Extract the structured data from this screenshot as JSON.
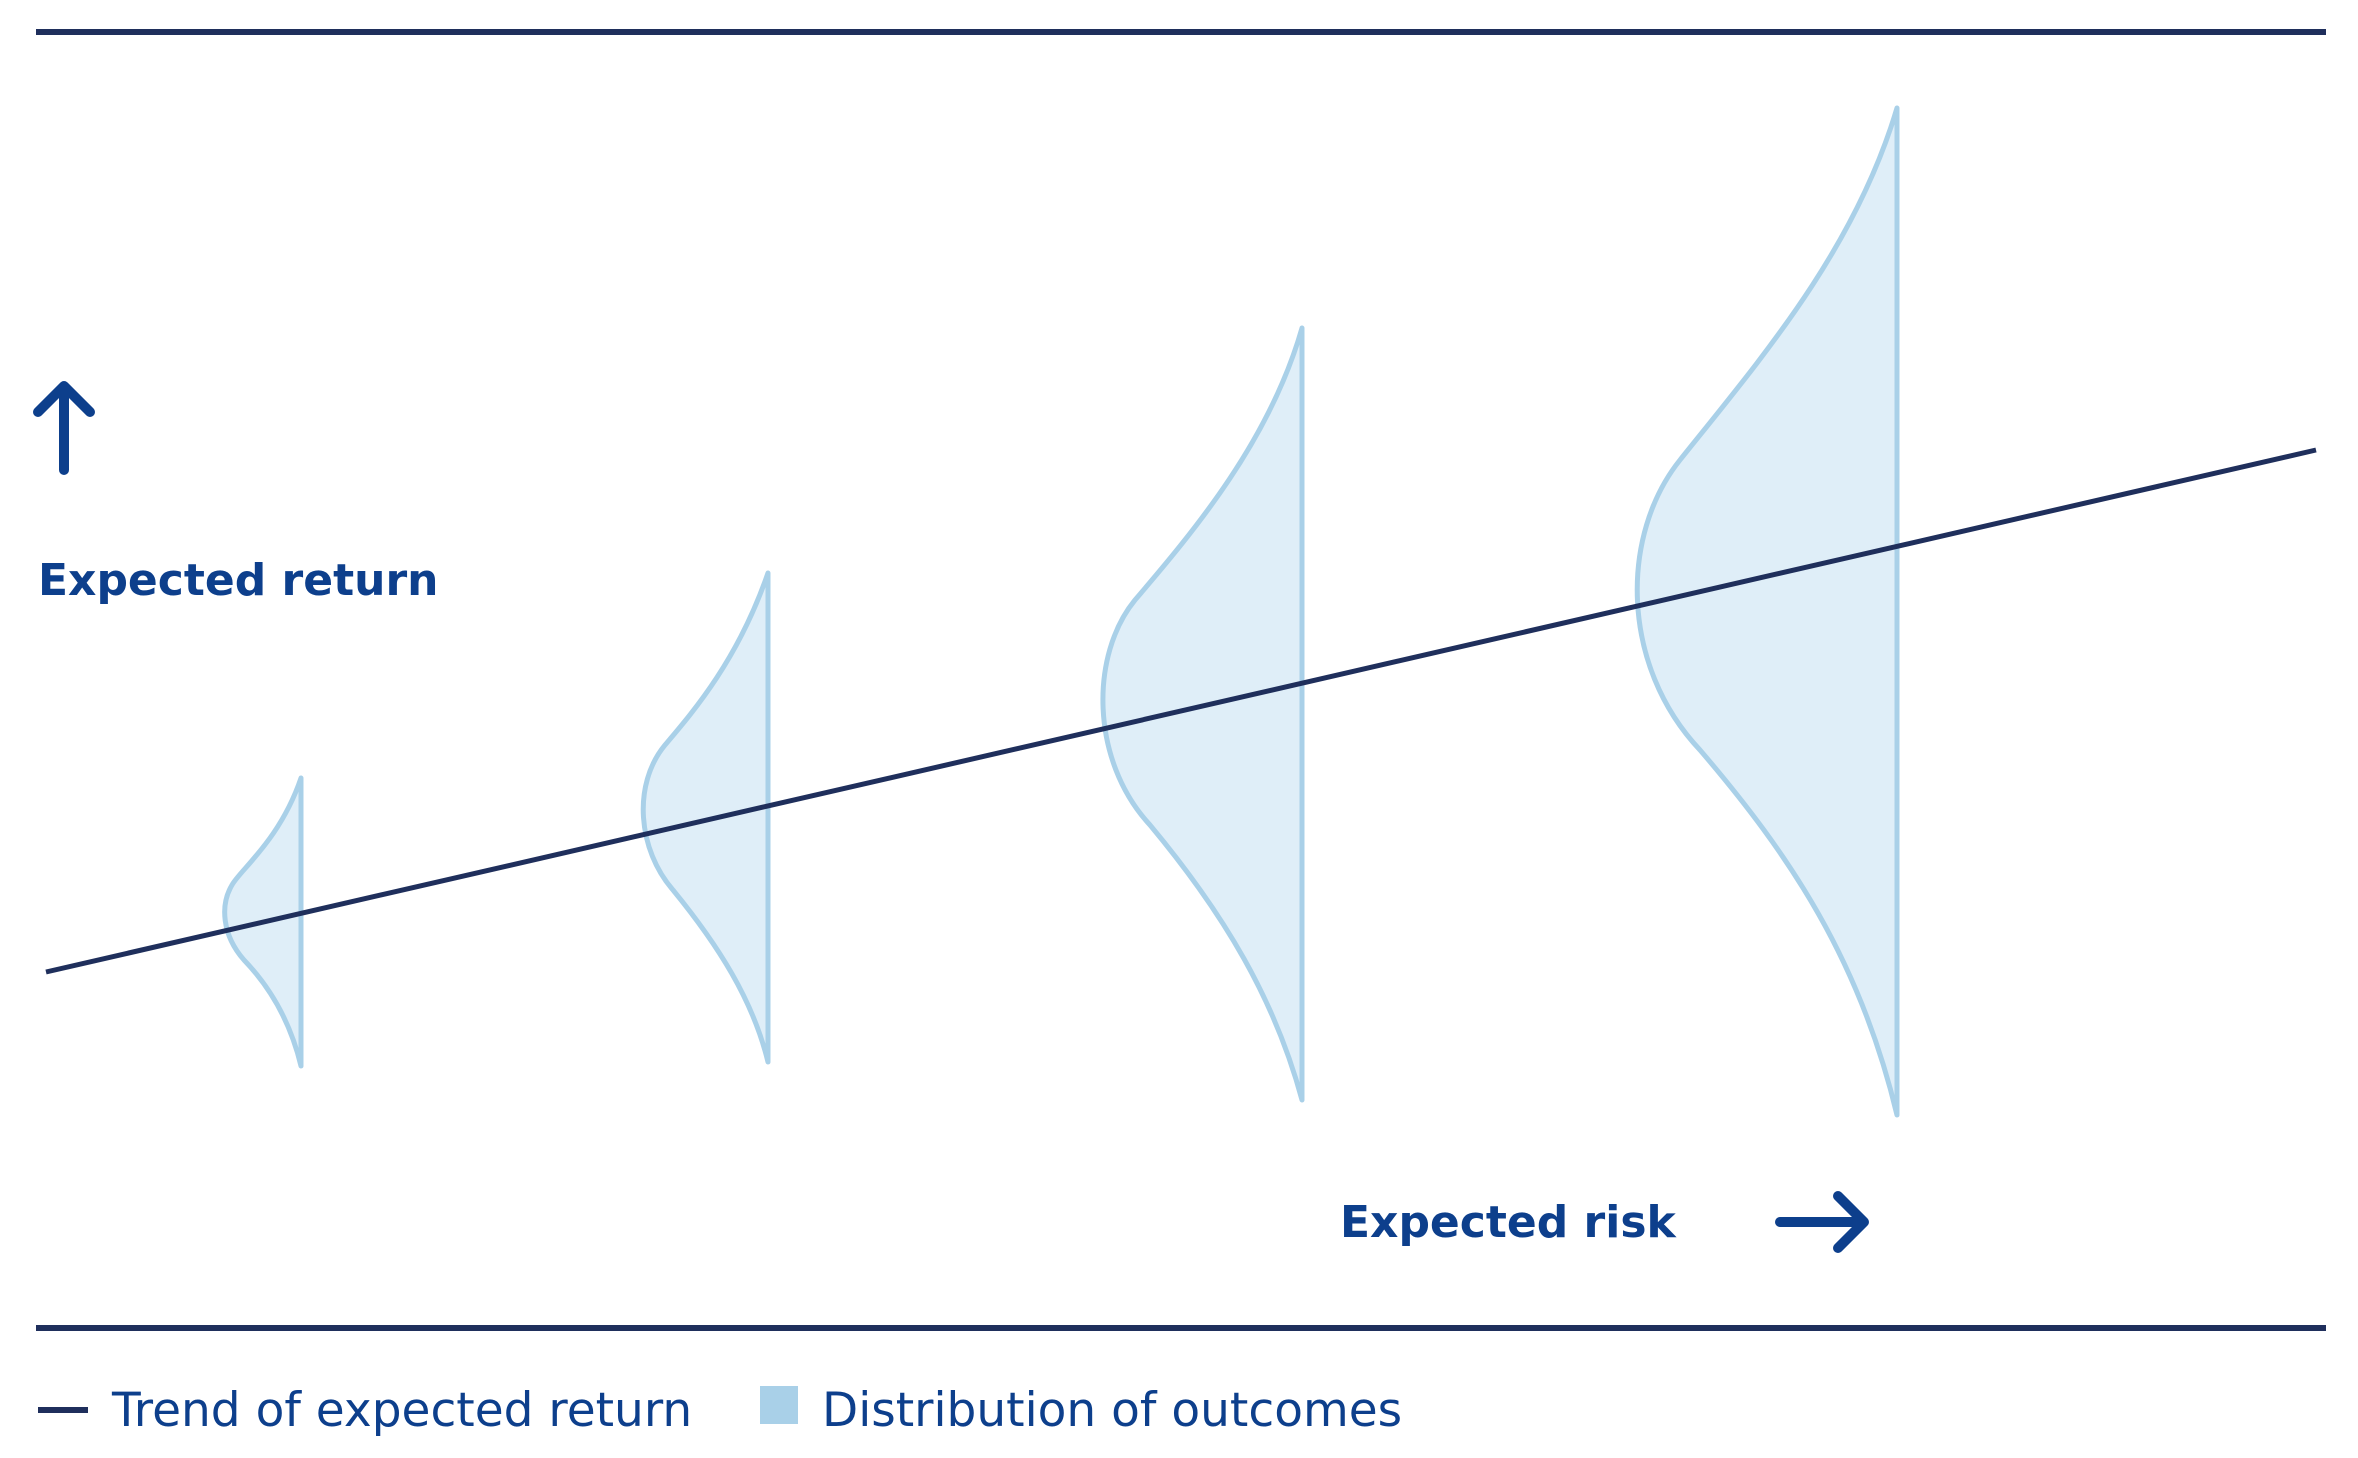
{
  "axes": {
    "y_label": "Expected return",
    "x_label": "Expected risk"
  },
  "legend": {
    "trend_label": "Trend of expected return",
    "distribution_label": "Distribution of outcomes"
  },
  "colors": {
    "trend_line": "#1f2f5c",
    "rule": "#1f2f5c",
    "accent_text": "#0d3f8c",
    "distribution_fill": "#dfeef8",
    "distribution_stroke": "#a9d0e8",
    "legend_swatch": "#a9d0e8",
    "legend_text": "#0d3f8c"
  },
  "icons": {
    "y_arrow": "arrow-up-icon",
    "x_arrow": "arrow-right-icon"
  }
}
